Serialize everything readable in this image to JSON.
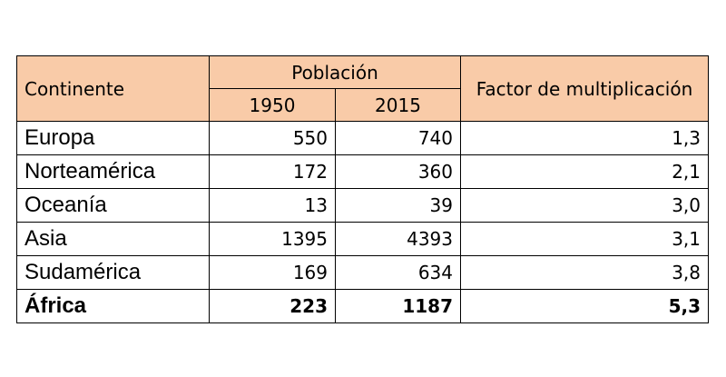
{
  "table": {
    "headers": {
      "continent": "Continente",
      "poblacion": "Población",
      "year1": "1950",
      "year2": "2015",
      "factor": "Factor de multiplicación"
    },
    "rows": [
      {
        "continent": "Europa",
        "p1950": "550",
        "p2015": "740",
        "factor": "1,3"
      },
      {
        "continent": "Norteamérica",
        "p1950": "172",
        "p2015": "360",
        "factor": "2,1"
      },
      {
        "continent": "Oceanía",
        "p1950": "13",
        "p2015": "39",
        "factor": "3,0"
      },
      {
        "continent": "Asia",
        "p1950": "1395",
        "p2015": "4393",
        "factor": "3,1"
      },
      {
        "continent": "Sudamérica",
        "p1950": "169",
        "p2015": "634",
        "factor": "3,8"
      },
      {
        "continent": "África",
        "p1950": "223",
        "p2015": "1187",
        "factor": "5,3"
      }
    ],
    "header_color": "#f9cba8"
  }
}
